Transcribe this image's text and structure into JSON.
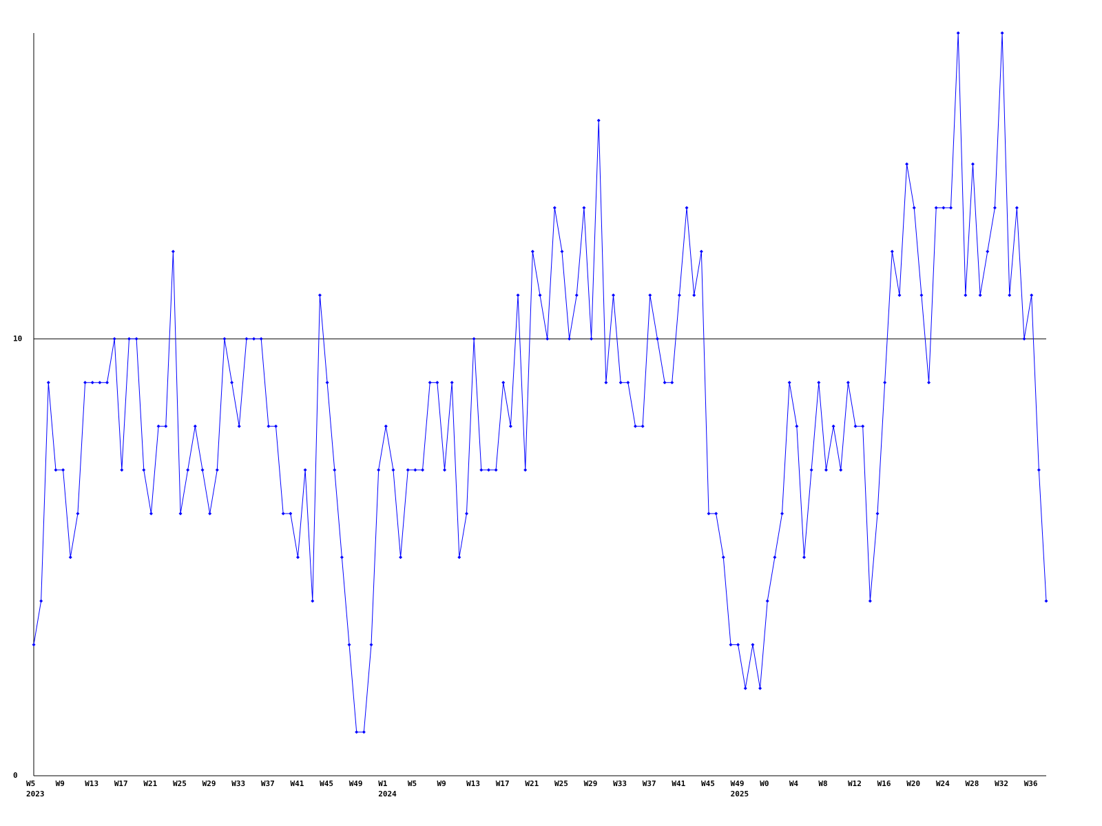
{
  "chart_data": {
    "type": "line",
    "categories": [
      "W5",
      null,
      null,
      null,
      "W9",
      null,
      null,
      null,
      "W13",
      null,
      null,
      null,
      "W17",
      null,
      null,
      null,
      "W21",
      null,
      null,
      null,
      "W25",
      null,
      null,
      null,
      "W29",
      null,
      null,
      null,
      "W33",
      null,
      null,
      null,
      "W37",
      null,
      null,
      null,
      "W41",
      null,
      null,
      null,
      "W45",
      null,
      null,
      null,
      "W49",
      null,
      null,
      null,
      "W1",
      null,
      null,
      null,
      "W5",
      null,
      null,
      null,
      "W9",
      null,
      null,
      null,
      "W13",
      null,
      null,
      null,
      "W17",
      null,
      null,
      null,
      "W21",
      null,
      null,
      null,
      "W25",
      null,
      null,
      null,
      "W29",
      null,
      null,
      null,
      "W33",
      null,
      null,
      null,
      "W37",
      null,
      null,
      null,
      "W41",
      null,
      null,
      null,
      "W45",
      null,
      null,
      null,
      "W49",
      null,
      null,
      null,
      "W0",
      null,
      null,
      null,
      "W4",
      null,
      null,
      null,
      "W8",
      null,
      null,
      null,
      "W12",
      null,
      null,
      null,
      "W16",
      null,
      null,
      null,
      "W20",
      null,
      null,
      null,
      "W24",
      null,
      null,
      null,
      "W28",
      null,
      null,
      null,
      "W32",
      null,
      null,
      null,
      "W36",
      null,
      null
    ],
    "category_years": [
      "2023",
      null,
      null,
      null,
      null,
      null,
      null,
      null,
      null,
      null,
      null,
      null,
      null,
      null,
      null,
      null,
      null,
      null,
      null,
      null,
      null,
      null,
      null,
      null,
      null,
      null,
      null,
      null,
      null,
      null,
      null,
      null,
      null,
      null,
      null,
      null,
      null,
      null,
      null,
      null,
      null,
      null,
      null,
      null,
      null,
      null,
      null,
      null,
      "2024",
      null,
      null,
      null,
      null,
      null,
      null,
      null,
      null,
      null,
      null,
      null,
      null,
      null,
      null,
      null,
      null,
      null,
      null,
      null,
      null,
      null,
      null,
      null,
      null,
      null,
      null,
      null,
      null,
      null,
      null,
      null,
      null,
      null,
      null,
      null,
      null,
      null,
      null,
      null,
      null,
      null,
      null,
      null,
      null,
      null,
      null,
      null,
      "2025",
      null,
      null,
      null,
      null,
      null,
      null,
      null,
      null,
      null,
      null,
      null,
      null,
      null,
      null,
      null,
      null,
      null,
      null,
      null,
      null,
      null,
      null,
      null,
      null,
      null,
      null,
      null,
      null,
      null,
      null,
      null,
      null,
      null,
      null,
      null,
      null,
      null,
      null
    ],
    "values": [
      3,
      4,
      9,
      7,
      7,
      5,
      6,
      9,
      9,
      9,
      9,
      10,
      7,
      10,
      10,
      7,
      6,
      8,
      8,
      12,
      6,
      7,
      8,
      7,
      6,
      7,
      10,
      9,
      8,
      10,
      10,
      10,
      8,
      8,
      6,
      6,
      5,
      7,
      4,
      11,
      9,
      7,
      5,
      3,
      1,
      1,
      3,
      7,
      8,
      7,
      5,
      7,
      7,
      7,
      9,
      9,
      7,
      9,
      5,
      6,
      10,
      7,
      7,
      7,
      9,
      8,
      11,
      7,
      12,
      11,
      10,
      13,
      12,
      10,
      11,
      13,
      10,
      15,
      9,
      11,
      9,
      9,
      8,
      8,
      11,
      10,
      9,
      9,
      11,
      13,
      11,
      12,
      6,
      6,
      5,
      3,
      3,
      2,
      3,
      2,
      4,
      5,
      6,
      9,
      8,
      5,
      7,
      9,
      7,
      8,
      7,
      9,
      8,
      8,
      4,
      6,
      9,
      12,
      11,
      14,
      13,
      11,
      9,
      13,
      13,
      13,
      17,
      11,
      14,
      11,
      12,
      13,
      17,
      11,
      13,
      10,
      11,
      7,
      4
    ],
    "color": "#0000ff",
    "ylim": [
      0,
      17
    ],
    "yticks": [
      0,
      10
    ],
    "grid": true
  }
}
